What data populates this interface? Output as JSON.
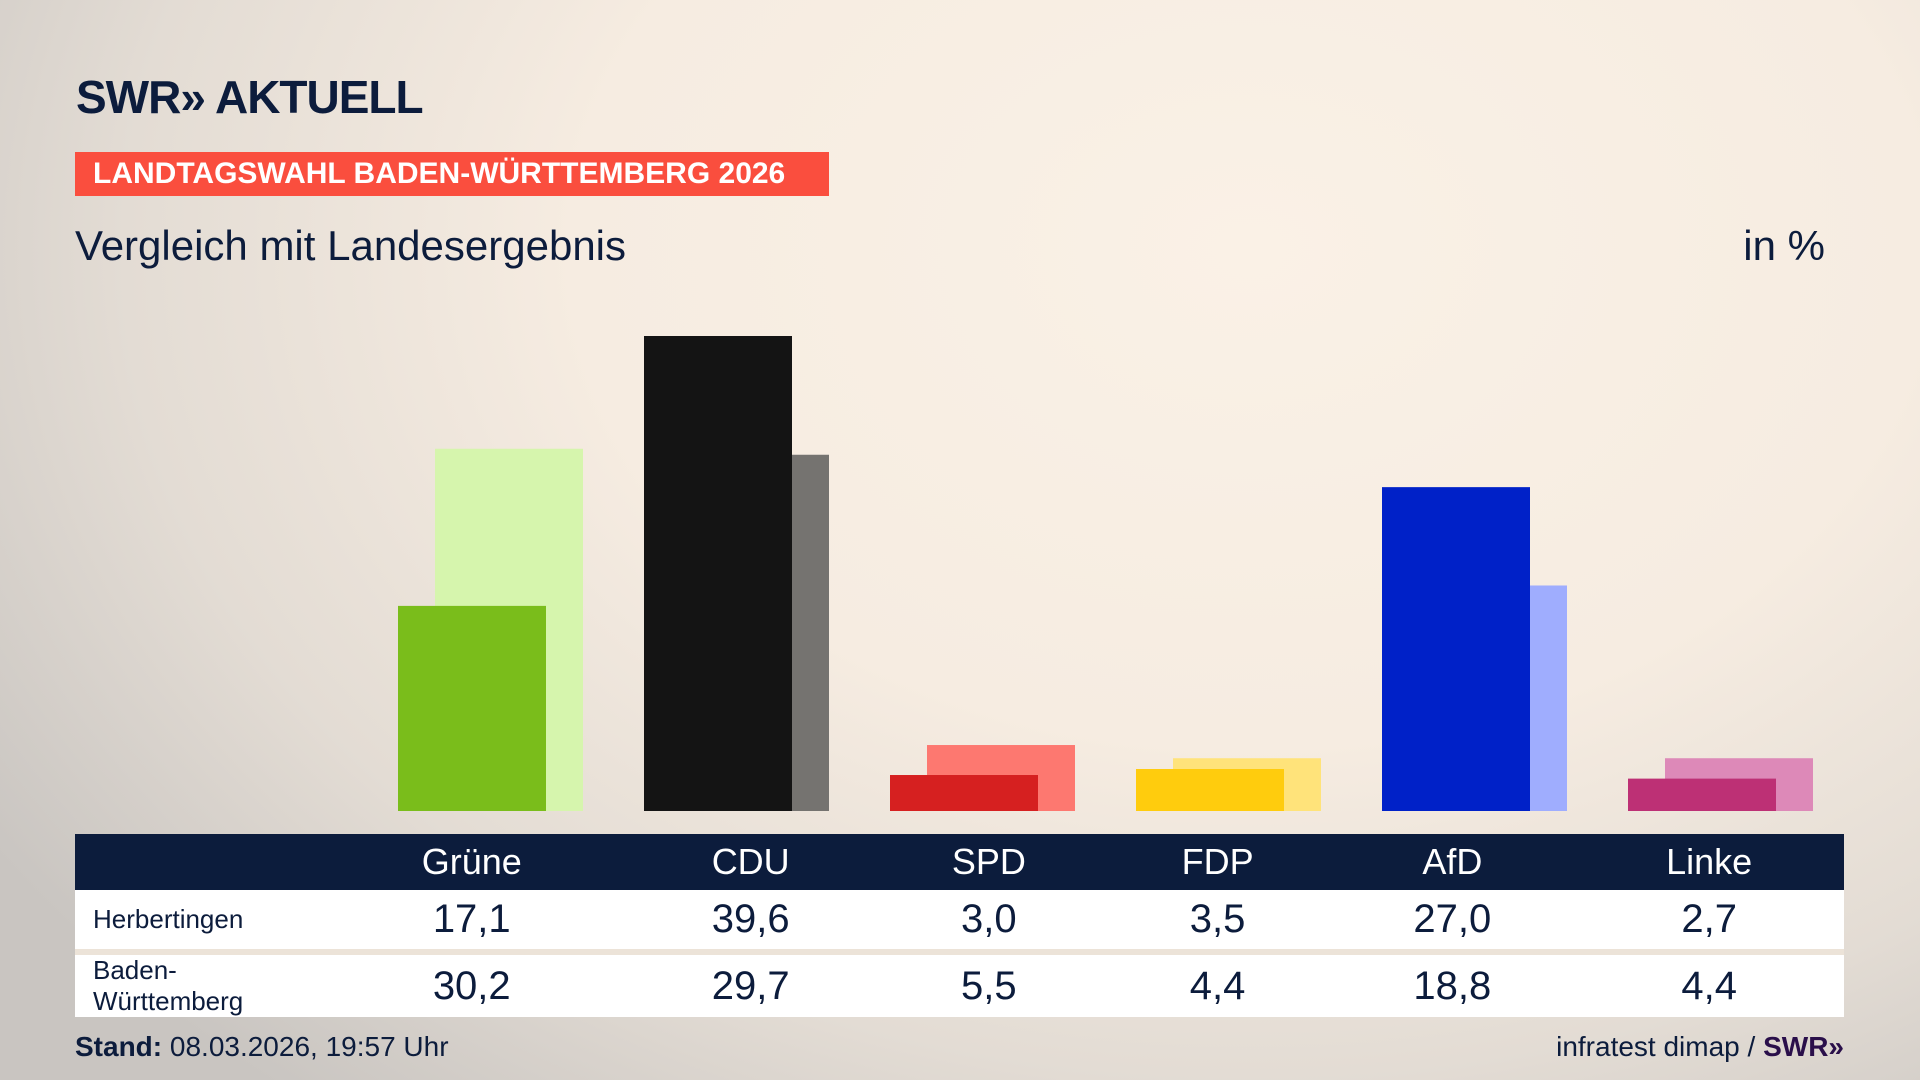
{
  "header": {
    "logo": "SWR» AKTUELL",
    "banner": "LANDTAGSWAHL BADEN-WÜRTTEMBERG 2026",
    "subtitle": "Vergleich mit Landesergebnis",
    "unit": "in %"
  },
  "chart_data": {
    "type": "bar",
    "categories": [
      "Grüne",
      "CDU",
      "SPD",
      "FDP",
      "AfD",
      "Linke"
    ],
    "series": [
      {
        "name": "Herbertingen",
        "values": [
          17.1,
          39.6,
          3.0,
          3.5,
          27.0,
          2.7
        ],
        "colors": [
          "#7abd1b",
          "#141414",
          "#d62020",
          "#ffcc0d",
          "#0021c8",
          "#bd3075"
        ]
      },
      {
        "name": "Baden-Württemberg",
        "values": [
          30.2,
          29.7,
          5.5,
          4.4,
          18.8,
          4.4
        ],
        "colors": [
          "#d6f5ad",
          "#757370",
          "#fd7870",
          "#ffe37a",
          "#9fadfe",
          "#dd89b8"
        ]
      }
    ],
    "ylim": [
      0,
      40
    ],
    "grid": false
  },
  "footer": {
    "stand_label": "Stand:",
    "stand_value": "08.03.2026, 19:57 Uhr",
    "source": "infratest dimap /",
    "source_logo": "SWR»"
  }
}
